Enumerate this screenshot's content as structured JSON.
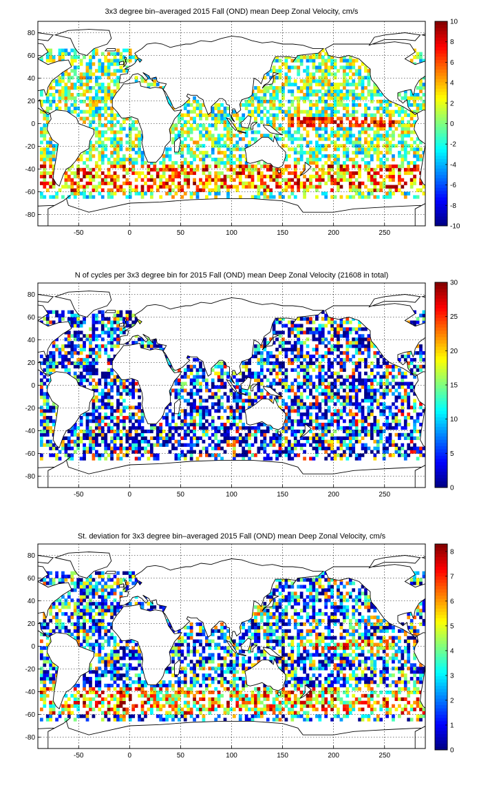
{
  "chart_data": [
    {
      "type": "heatmap",
      "title": "3x3 degree bin–averaged 2015 Fall (OND) mean Deep Zonal Velocity, cm/s",
      "xlim": [
        -90,
        290
      ],
      "ylim": [
        -90,
        90
      ],
      "x_ticks": [
        -50,
        0,
        50,
        100,
        150,
        200,
        250
      ],
      "y_ticks": [
        80,
        60,
        40,
        20,
        0,
        -20,
        -40,
        -60,
        -80
      ],
      "grid": true,
      "colorbar": {
        "placement": "right",
        "range": [
          -10,
          10
        ],
        "ticks": [
          10,
          8,
          6,
          4,
          2,
          0,
          -2,
          -4,
          -6,
          -8,
          -10
        ],
        "colormap": "jet"
      },
      "bin_size_deg": 3,
      "pattern": "velocity"
    },
    {
      "type": "heatmap",
      "title": "N of cycles per 3x3 degree bin for 2015 Fall (OND) mean Deep Zonal Velocity (21608 in total)",
      "xlim": [
        -90,
        290
      ],
      "ylim": [
        -90,
        90
      ],
      "x_ticks": [
        -50,
        0,
        50,
        100,
        150,
        200,
        250
      ],
      "y_ticks": [
        80,
        60,
        40,
        20,
        0,
        -20,
        -40,
        -60,
        -80
      ],
      "grid": true,
      "colorbar": {
        "placement": "right",
        "range": [
          0,
          30
        ],
        "ticks": [
          30,
          25,
          20,
          15,
          10,
          5,
          0
        ],
        "colormap": "jet"
      },
      "bin_size_deg": 3,
      "pattern": "count"
    },
    {
      "type": "heatmap",
      "title": "St. deviation for 3x3 degree bin–averaged 2015 Fall (OND) mean Deep Zonal Velocity, cm/s",
      "xlim": [
        -90,
        290
      ],
      "ylim": [
        -90,
        90
      ],
      "x_ticks": [
        -50,
        0,
        50,
        100,
        150,
        200,
        250
      ],
      "y_ticks": [
        80,
        60,
        40,
        20,
        0,
        -20,
        -40,
        -60,
        -80
      ],
      "grid": true,
      "colorbar": {
        "placement": "right",
        "range": [
          0,
          8.3
        ],
        "ticks": [
          8,
          7,
          6,
          5,
          4,
          3,
          2,
          1,
          0
        ],
        "colormap": "jet"
      },
      "bin_size_deg": 3,
      "pattern": "stdev"
    }
  ]
}
